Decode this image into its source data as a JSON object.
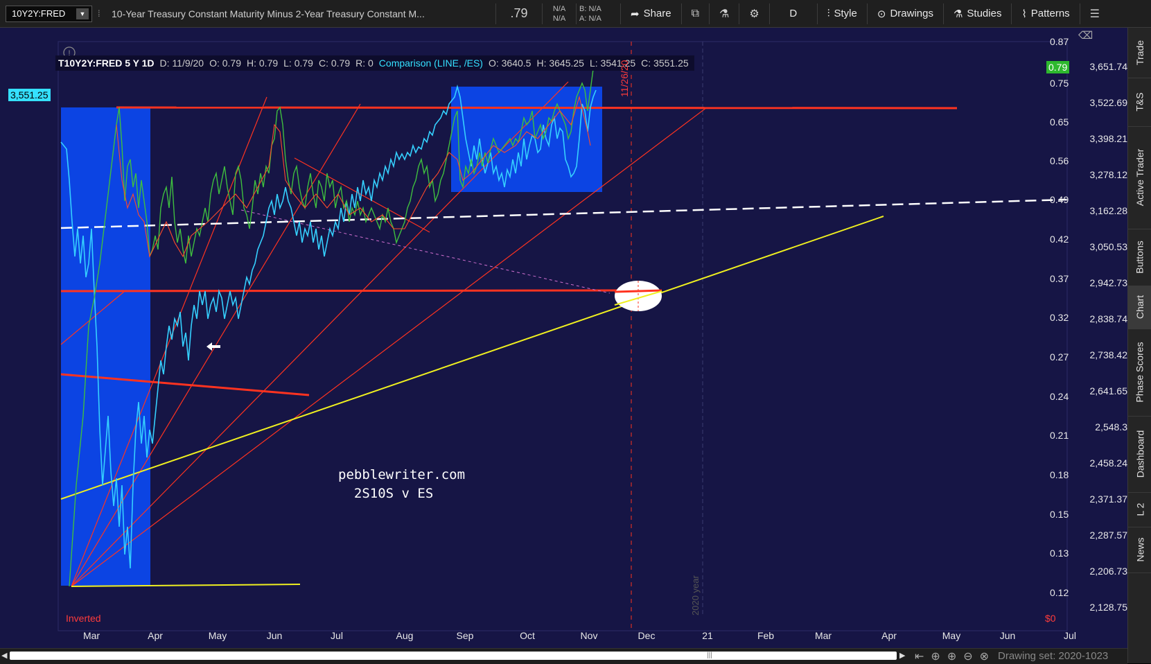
{
  "toolbar": {
    "symbol": "10Y2Y:FRED",
    "description": "10-Year Treasury Constant Maturity Minus 2-Year Treasury Constant M...",
    "last": ".79",
    "na1": "N/A",
    "na2": "N/A",
    "bid": "B: N/A",
    "ask": "A: N/A",
    "share": "Share",
    "aggregation": "D",
    "style": "Style",
    "drawings": "Drawings",
    "studies": "Studies",
    "patterns": "Patterns"
  },
  "infobar": {
    "symbol": "T10Y2Y:FRED 5 Y 1D",
    "date": "D: 11/9/20",
    "open": "O: 0.79",
    "high": "H: 0.79",
    "low": "L: 0.79",
    "close": "C: 0.79",
    "range": "R: 0",
    "comparison": "Comparison (LINE, /ES)",
    "cmp_open": "O: 3640.5",
    "cmp_high": "H: 3645.25",
    "cmp_low": "L: 3541.25",
    "cmp_close": "C: 3551.25"
  },
  "left_axis": [
    "3,651.74",
    "3,522.69",
    "3,398.21",
    "3,278.12",
    "3,162.28",
    "3,050.53",
    "2,942.73",
    "2,838.74",
    "2,738.42",
    "2,641.65",
    "2,548.3",
    "2,458.24",
    "2,371.37",
    "2,287.57",
    "2,206.73",
    "2,128.75"
  ],
  "right_axis": [
    "0.87",
    "0.75",
    "0.65",
    "0.56",
    "0.49",
    "0.42",
    "0.37",
    "0.32",
    "0.27",
    "0.24",
    "0.21",
    "0.18",
    "0.15",
    "0.13",
    "0.12"
  ],
  "x_axis": [
    "Mar",
    "Apr",
    "May",
    "Jun",
    "Jul",
    "Aug",
    "Sep",
    "Oct",
    "Nov",
    "Dec",
    "21",
    "Feb",
    "Mar",
    "Apr",
    "May",
    "Jun",
    "Jul"
  ],
  "price_tags": {
    "es_current": "3,551.25",
    "spread_current": "0.79"
  },
  "annotations": {
    "watermark_line1": "pebblewriter.com",
    "watermark_line2": "  2S10S v ES",
    "inverted": "Inverted",
    "dollar": "$0",
    "date_marker": "11/26/20",
    "year_marker": "2020 year"
  },
  "right_tabs": [
    "Trade",
    "T&S",
    "Active Trader",
    "Buttons",
    "Chart",
    "Phase Scores",
    "Dashboard",
    "L 2",
    "News"
  ],
  "bottom": {
    "drawing_set": "Drawing set: 2020-1023"
  },
  "colors": {
    "chart_bg": "#161545",
    "es_line": "#35d0ff",
    "spread_up": "#3fbf3f",
    "spread_down": "#ff4a2a",
    "trend_red": "#ff3320",
    "trend_yellow": "#f0f020",
    "highlight_box": "#0a4cff"
  }
}
